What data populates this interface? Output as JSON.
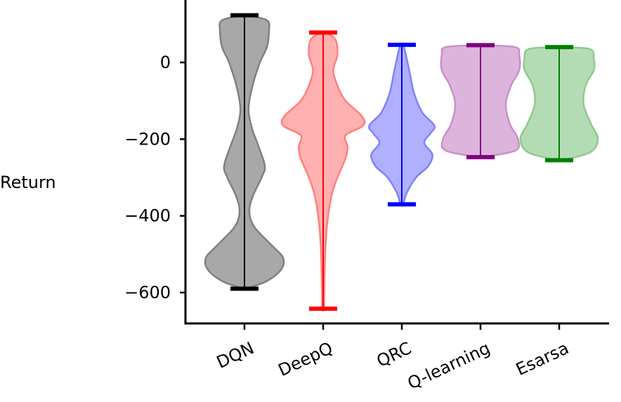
{
  "chart_data": {
    "type": "violin",
    "ylabel": "Return",
    "xlabel": "",
    "ylim": [
      -680,
      160
    ],
    "yticks": [
      {
        "value": 0,
        "label": "0"
      },
      {
        "value": -200,
        "label": "−200"
      },
      {
        "value": -400,
        "label": "−400"
      },
      {
        "value": -600,
        "label": "−600"
      }
    ],
    "categories": [
      "DQN",
      "DeepQ",
      "QRC",
      "Q-learning",
      "Esarsa"
    ],
    "series": [
      {
        "category": "DQN",
        "color": "#000000",
        "fill": "#a8a8a8",
        "edge": "#808080",
        "min": -590,
        "max": 123,
        "profile": [
          [
            123,
            0.02
          ],
          [
            110,
            0.55
          ],
          [
            80,
            0.6
          ],
          [
            40,
            0.55
          ],
          [
            0,
            0.38
          ],
          [
            -60,
            0.2
          ],
          [
            -120,
            0.1
          ],
          [
            -170,
            0.18
          ],
          [
            -220,
            0.35
          ],
          [
            -270,
            0.5
          ],
          [
            -300,
            0.42
          ],
          [
            -350,
            0.2
          ],
          [
            -390,
            0.12
          ],
          [
            -430,
            0.25
          ],
          [
            -480,
            0.7
          ],
          [
            -510,
            0.95
          ],
          [
            -540,
            0.9
          ],
          [
            -570,
            0.55
          ],
          [
            -590,
            0.03
          ]
        ]
      },
      {
        "category": "DeepQ",
        "color": "#ff0000",
        "fill": "#ffb0b0",
        "edge": "#ff8080",
        "min": -642,
        "max": 78,
        "profile": [
          [
            78,
            0.05
          ],
          [
            60,
            0.3
          ],
          [
            20,
            0.35
          ],
          [
            -20,
            0.25
          ],
          [
            -60,
            0.35
          ],
          [
            -100,
            0.55
          ],
          [
            -140,
            0.95
          ],
          [
            -165,
            0.98
          ],
          [
            -190,
            0.55
          ],
          [
            -220,
            0.6
          ],
          [
            -250,
            0.55
          ],
          [
            -300,
            0.35
          ],
          [
            -350,
            0.2
          ],
          [
            -420,
            0.1
          ],
          [
            -500,
            0.05
          ],
          [
            -600,
            0.03
          ],
          [
            -642,
            0.02
          ]
        ]
      },
      {
        "category": "QRC",
        "color": "#0000ff",
        "fill": "#b0b0ff",
        "edge": "#8080ff",
        "min": -370,
        "max": 46,
        "profile": [
          [
            46,
            0.03
          ],
          [
            20,
            0.1
          ],
          [
            -30,
            0.2
          ],
          [
            -80,
            0.3
          ],
          [
            -130,
            0.5
          ],
          [
            -165,
            0.8
          ],
          [
            -185,
            0.7
          ],
          [
            -210,
            0.55
          ],
          [
            -240,
            0.75
          ],
          [
            -270,
            0.65
          ],
          [
            -300,
            0.35
          ],
          [
            -340,
            0.12
          ],
          [
            -370,
            0.03
          ]
        ]
      },
      {
        "category": "Q-learning",
        "color": "#800080",
        "fill": "#dcb4dc",
        "edge": "#c890c8",
        "min": -247,
        "max": 45,
        "profile": [
          [
            45,
            0.03
          ],
          [
            40,
            0.85
          ],
          [
            20,
            0.95
          ],
          [
            -20,
            0.95
          ],
          [
            -60,
            0.75
          ],
          [
            -110,
            0.62
          ],
          [
            -160,
            0.72
          ],
          [
            -200,
            0.92
          ],
          [
            -230,
            0.85
          ],
          [
            -247,
            0.03
          ]
        ]
      },
      {
        "category": "Esarsa",
        "color": "#008000",
        "fill": "#b4dcb4",
        "edge": "#90c890",
        "min": -255,
        "max": 40,
        "profile": [
          [
            40,
            0.03
          ],
          [
            35,
            0.75
          ],
          [
            10,
            0.85
          ],
          [
            -20,
            0.85
          ],
          [
            -60,
            0.65
          ],
          [
            -110,
            0.6
          ],
          [
            -160,
            0.78
          ],
          [
            -200,
            0.95
          ],
          [
            -235,
            0.75
          ],
          [
            -255,
            0.03
          ]
        ]
      }
    ]
  }
}
